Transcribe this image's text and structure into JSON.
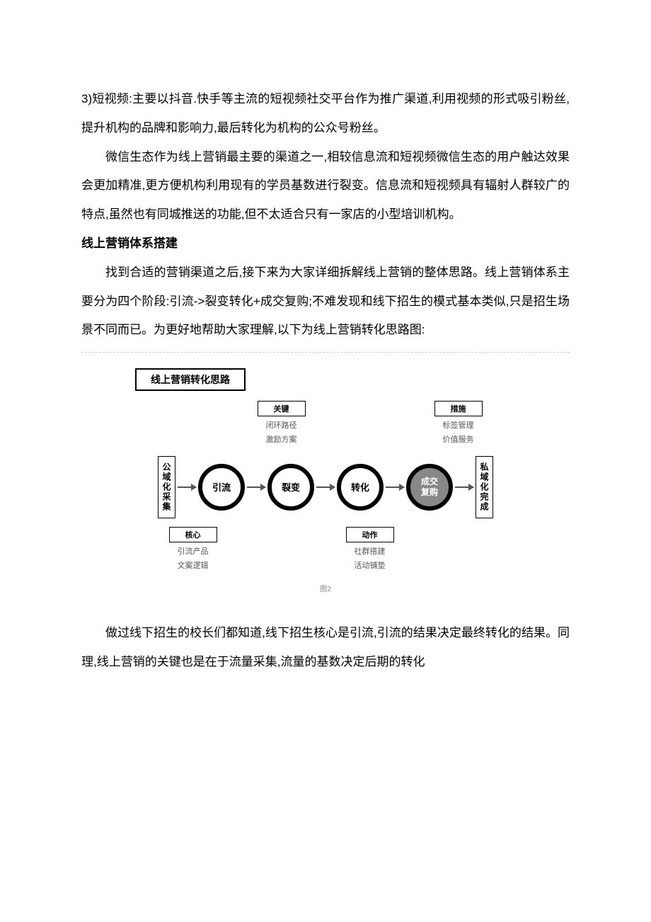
{
  "paragraphs": {
    "p1": "3)短视频:主要以抖音.快手等主流的短视频社交平台作为推广渠道,利用视频的形式吸引粉丝,提升机构的品牌和影响力,最后转化为机构的公众号粉丝。",
    "p2": "微信生态作为线上营销最主要的渠道之一,相较信息流和短视频微信生态的用户触达效果会更加精准,更方便机构利用现有的学员基数进行裂变。信息流和短视频具有辐射人群较广的特点,虽然也有同城推送的功能,但不太适合只有一家店的小型培训机构。",
    "h1": "线上营销体系搭建",
    "p3": "找到合适的营销渠道之后,接下来为大家详细拆解线上营销的整体思路。线上营销体系主要分为四个阶段:引流->裂变转化+成交复购;不难发现和线下招生的模式基本类似,只是招生场景不同而已。为更好地帮助大家理解,以下为线上营销转化思路图:",
    "p4": "做过线下招生的校长们都知道,线下招生核心是引流,引流的结果决定最终转化的结果。同理,线上营销的关键也是在于流量采集,流量的基数决定后期的转化"
  },
  "diagram": {
    "title": "线上营销转化思路",
    "left_box": "公域化采集",
    "right_box": "私域化完成",
    "stages": [
      "引流",
      "裂变",
      "转化",
      "成交\n复购"
    ],
    "top_annotations": [
      {
        "label": "关键",
        "items": [
          "闭环路径",
          "激励方案"
        ]
      },
      {
        "label": "措施",
        "items": [
          "标签管理",
          "价值服务"
        ]
      }
    ],
    "bottom_annotations": [
      {
        "label": "核心",
        "items": [
          "引流产品",
          "文案逻辑"
        ]
      },
      {
        "label": "动作",
        "items": [
          "社群搭建",
          "活动铺垫"
        ]
      }
    ],
    "caption": "图2",
    "colors": {
      "text": "#000000",
      "border": "#000000",
      "arrow": "#555555",
      "filled_circle_bg": "#888888",
      "anno_text": "#555555",
      "divider": "#cccccc"
    }
  }
}
